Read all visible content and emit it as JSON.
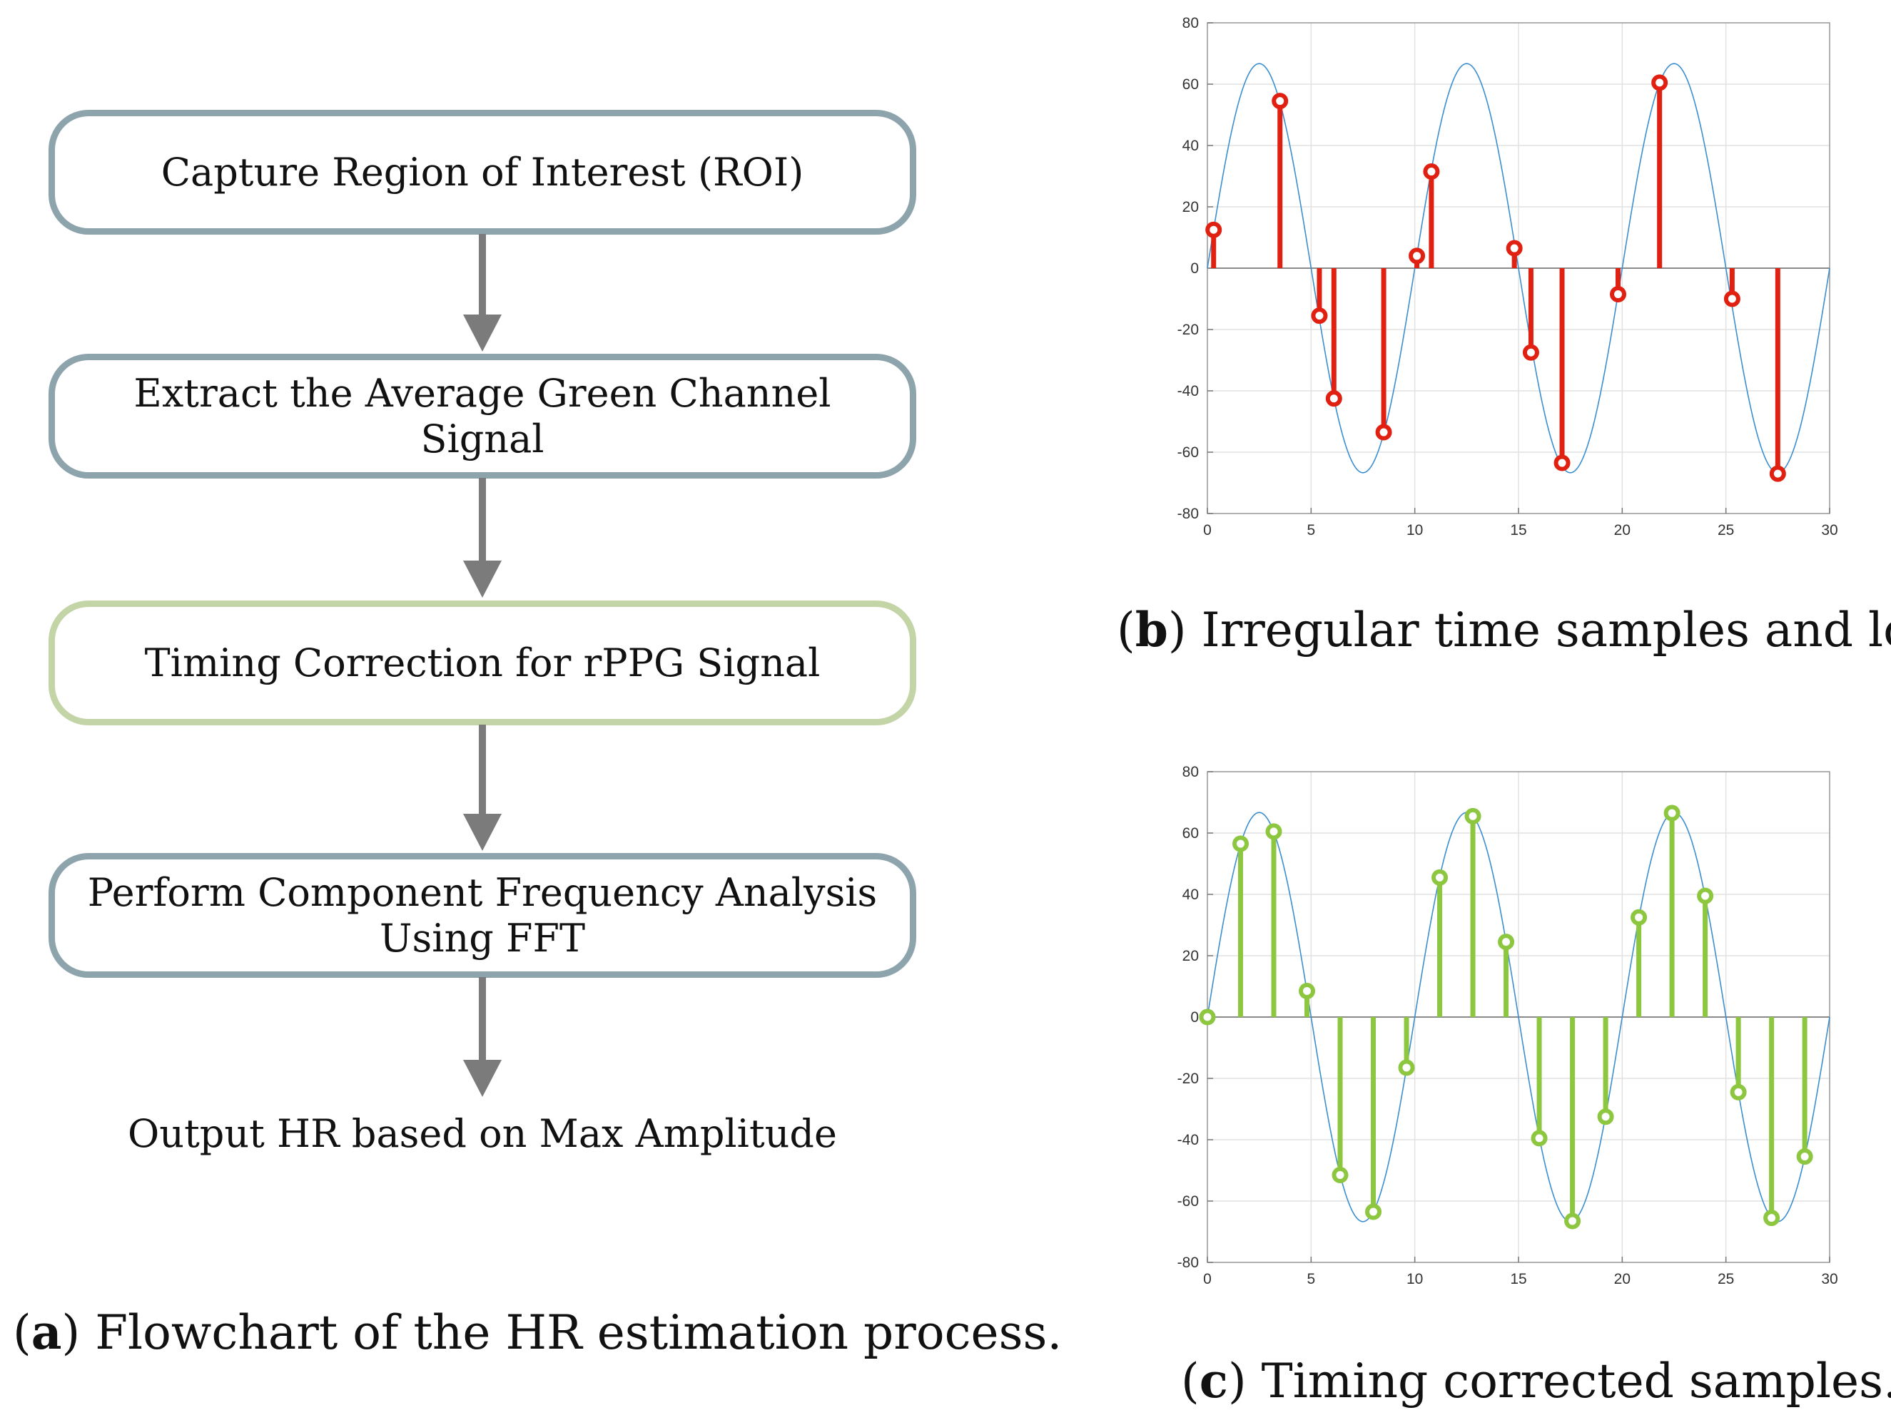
{
  "flowchart": {
    "steps": [
      {
        "label": "Capture Region of Interest (ROI)"
      },
      {
        "label": "Extract the Average Green Channel Signal"
      },
      {
        "label": "Timing Correction for rPPG Signal"
      },
      {
        "label": "Perform Component Frequency Analysis\nUsing FFT"
      }
    ],
    "output": "Output HR based on Max Amplitude",
    "caption": {
      "letter": "a",
      "text": "Flowchart of the HR estimation process."
    },
    "colors": {
      "box_border": "#8ea4ad",
      "highlight_border": "#c3d4a7",
      "arrow": "#7b7b7b"
    }
  },
  "captions": {
    "b": {
      "letter": "b",
      "text": "Irregular time samples and loss."
    },
    "c": {
      "letter": "c",
      "text": "Timing corrected samples."
    }
  },
  "chart_data": [
    {
      "id": "b",
      "type": "stem",
      "title": "Irregular time samples and loss.",
      "xlim": [
        0,
        30
      ],
      "ylim": [
        -80,
        80
      ],
      "xticks": [
        0,
        5,
        10,
        15,
        20,
        25,
        30
      ],
      "yticks": [
        80,
        60,
        40,
        20,
        0,
        -20,
        -40,
        -60,
        -80
      ],
      "curve": {
        "type": "sine",
        "amplitude": 66.7,
        "period": 10,
        "color": "#3b8fd0"
      },
      "stem_color": "#e02010",
      "samples": [
        {
          "x": 0.3,
          "y": 12.5
        },
        {
          "x": 3.5,
          "y": 54.5
        },
        {
          "x": 5.4,
          "y": -15.5
        },
        {
          "x": 6.1,
          "y": -42.5
        },
        {
          "x": 8.5,
          "y": -53.5
        },
        {
          "x": 10.1,
          "y": 4
        },
        {
          "x": 10.8,
          "y": 31.5
        },
        {
          "x": 14.8,
          "y": 6.5
        },
        {
          "x": 15.6,
          "y": -27.5
        },
        {
          "x": 17.1,
          "y": -63.5
        },
        {
          "x": 19.8,
          "y": -8.5
        },
        {
          "x": 21.8,
          "y": 60.5
        },
        {
          "x": 25.3,
          "y": -10
        },
        {
          "x": 27.5,
          "y": -67
        }
      ]
    },
    {
      "id": "c",
      "type": "stem",
      "title": "Timing corrected samples.",
      "xlim": [
        0,
        30
      ],
      "ylim": [
        -80,
        80
      ],
      "xticks": [
        0,
        5,
        10,
        15,
        20,
        25,
        30
      ],
      "yticks": [
        80,
        60,
        40,
        20,
        0,
        -20,
        -40,
        -60,
        -80
      ],
      "curve": {
        "type": "sine",
        "amplitude": 66.7,
        "period": 10,
        "color": "#3b8fd0"
      },
      "stem_color": "#8dc63f",
      "samples": [
        {
          "x": 0,
          "y": 0
        },
        {
          "x": 1.6,
          "y": 56.5
        },
        {
          "x": 3.2,
          "y": 60.5
        },
        {
          "x": 4.8,
          "y": 8.5
        },
        {
          "x": 6.4,
          "y": -51.5
        },
        {
          "x": 8.0,
          "y": -63.5
        },
        {
          "x": 9.6,
          "y": -16.5
        },
        {
          "x": 11.2,
          "y": 45.5
        },
        {
          "x": 12.8,
          "y": 65.5
        },
        {
          "x": 14.4,
          "y": 24.5
        },
        {
          "x": 16.0,
          "y": -39.5
        },
        {
          "x": 17.6,
          "y": -66.5
        },
        {
          "x": 19.2,
          "y": -32.5
        },
        {
          "x": 20.8,
          "y": 32.5
        },
        {
          "x": 22.4,
          "y": 66.5
        },
        {
          "x": 24.0,
          "y": 39.5
        },
        {
          "x": 25.6,
          "y": -24.5
        },
        {
          "x": 27.2,
          "y": -65.5
        },
        {
          "x": 28.8,
          "y": -45.5
        }
      ]
    }
  ]
}
